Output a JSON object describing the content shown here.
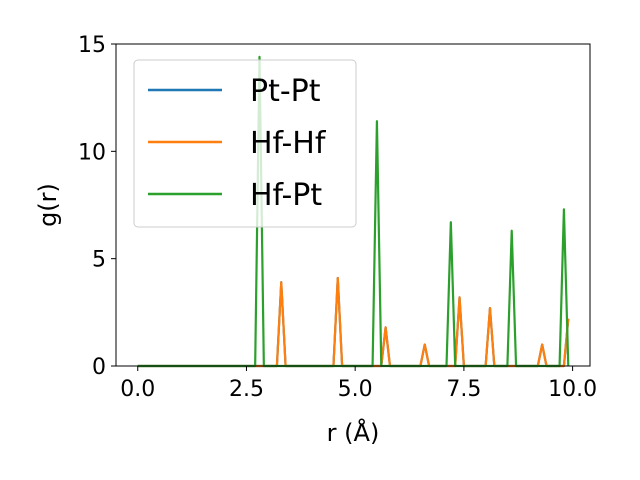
{
  "chart_data": {
    "type": "line",
    "title": "",
    "xlabel": "r (Å)",
    "ylabel": "g(r)",
    "xlim": [
      -0.5,
      10.4
    ],
    "ylim": [
      0,
      15
    ],
    "xticks": [
      "0.0",
      "2.5",
      "5.0",
      "7.5",
      "10.0"
    ],
    "yticks": [
      "0",
      "5",
      "10",
      "15"
    ],
    "grid": false,
    "legend_position": "top-left",
    "series": [
      {
        "name": "Pt-Pt",
        "color": "#1f77b4",
        "x": [
          0.0,
          3.2,
          3.3,
          3.4,
          4.5,
          4.6,
          4.7,
          5.6,
          5.7,
          5.8,
          6.5,
          6.6,
          6.7,
          7.3,
          7.4,
          7.5,
          8.0,
          8.1,
          8.2,
          9.2,
          9.3,
          9.4,
          9.8,
          9.9
        ],
        "y": [
          0,
          0,
          3.9,
          0,
          0,
          4.1,
          0,
          0,
          1.8,
          0,
          0,
          1.0,
          0,
          0,
          3.2,
          0,
          0,
          2.7,
          0,
          0,
          1.0,
          0,
          0,
          2.2
        ]
      },
      {
        "name": "Hf-Hf",
        "color": "#ff7f0e",
        "x": [
          0.0,
          3.2,
          3.3,
          3.4,
          4.5,
          4.6,
          4.7,
          5.6,
          5.7,
          5.8,
          6.5,
          6.6,
          6.7,
          7.3,
          7.4,
          7.5,
          8.0,
          8.1,
          8.2,
          9.2,
          9.3,
          9.4,
          9.8,
          9.9
        ],
        "y": [
          0,
          0,
          3.9,
          0,
          0,
          4.1,
          0,
          0,
          1.8,
          0,
          0,
          1.0,
          0,
          0,
          3.2,
          0,
          0,
          2.7,
          0,
          0,
          1.0,
          0,
          0,
          2.2
        ]
      },
      {
        "name": "Hf-Pt",
        "color": "#2ca02c",
        "x": [
          0.0,
          2.7,
          2.8,
          2.9,
          5.4,
          5.5,
          5.6,
          7.1,
          7.2,
          7.3,
          8.5,
          8.6,
          8.7,
          9.7,
          9.8,
          9.9
        ],
        "y": [
          0,
          0,
          14.4,
          0,
          0,
          11.4,
          0,
          0,
          6.7,
          0,
          0,
          6.3,
          0,
          0,
          7.3,
          0
        ]
      }
    ]
  }
}
